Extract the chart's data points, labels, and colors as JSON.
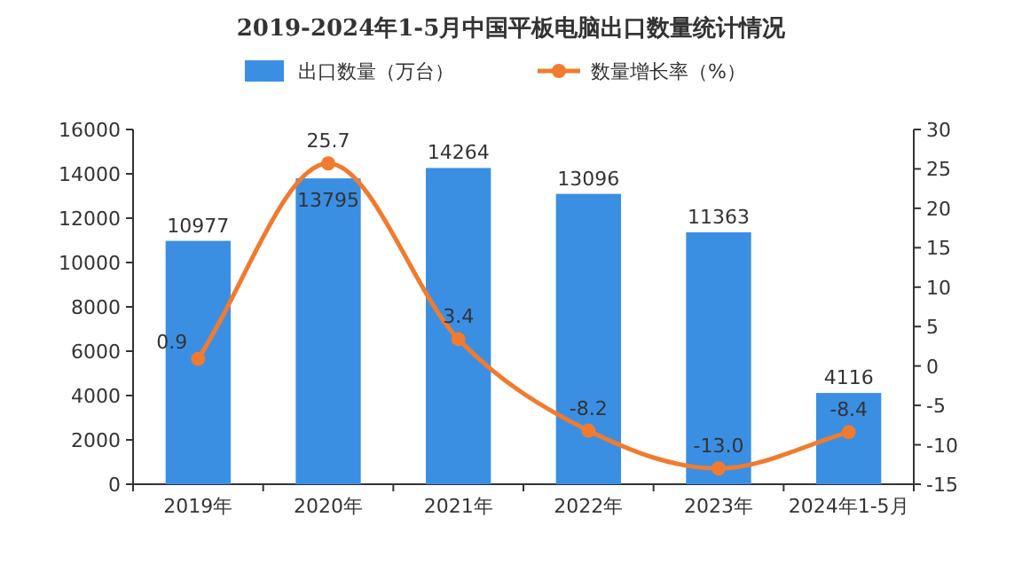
{
  "chart_data": {
    "type": "bar",
    "title": "2019-2024年1-5月中国平板电脑出口数量统计情况",
    "categories": [
      "2019年",
      "2020年",
      "2021年",
      "2022年",
      "2023年",
      "2024年1-5月"
    ],
    "series": [
      {
        "name": "出口数量（万台）",
        "color": "#3b8fe3",
        "values": [
          10977,
          13795,
          14264,
          13096,
          11363,
          4116
        ],
        "value_labels": [
          "10977",
          "13795",
          "14264",
          "13096",
          "11363",
          "4116"
        ]
      },
      {
        "name": "数量增长率（%）",
        "type": "line",
        "axis": "y2",
        "color": "#f07b2f",
        "values": [
          0.9,
          25.7,
          3.4,
          -8.2,
          -13.0,
          -8.4
        ],
        "value_labels": [
          "0.9",
          "25.7",
          "3.4",
          "-8.2",
          "-13.0",
          "-8.4"
        ]
      }
    ],
    "ylim": [
      0,
      16000
    ],
    "yticks": [
      0,
      2000,
      4000,
      6000,
      8000,
      10000,
      12000,
      14000,
      16000
    ],
    "y2lim": [
      -15,
      30
    ],
    "y2ticks": [
      -15,
      -10,
      -5,
      0,
      5,
      10,
      15,
      20,
      25,
      30
    ],
    "legend": "top",
    "marker": "circle",
    "grid": false
  }
}
